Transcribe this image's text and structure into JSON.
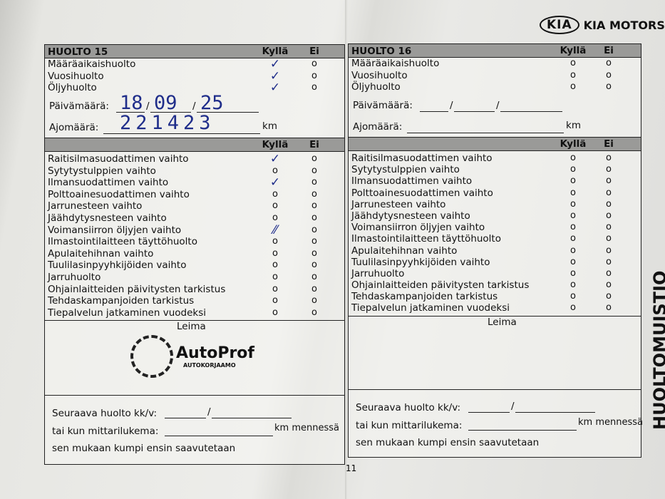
{
  "brand": {
    "logo_oval": "KIA",
    "logo_text": "KIA MOTORS"
  },
  "side_title": "HUOLTOMUISTIO",
  "page_number": "11",
  "pages": [
    {
      "title": "HUOLTO 15",
      "yes_label": "Kyllä",
      "no_label": "Ei",
      "top_items": [
        {
          "label": "Määräaikaishuolto",
          "yes": "check",
          "no": "circle"
        },
        {
          "label": "Vuosihuolto",
          "yes": "check",
          "no": "circle"
        },
        {
          "label": "Öljyhuolto",
          "yes": "check",
          "no": "circle"
        }
      ],
      "date_label": "Päivämäärä:",
      "date": {
        "day": "18",
        "month": "09",
        "year": "25"
      },
      "km_label": "Ajomäärä:",
      "km_value": "221423",
      "km_unit": "km",
      "items": [
        {
          "label": "Raitisilmasuodattimen vaihto",
          "yes": "check",
          "no": "circle"
        },
        {
          "label": "Sytytystulppien vaihto",
          "yes": "circle",
          "no": "circle"
        },
        {
          "label": "Ilmansuodattimen vaihto",
          "yes": "check",
          "no": "circle"
        },
        {
          "label": "Polttoainesuodattimen vaihto",
          "yes": "circle",
          "no": "circle"
        },
        {
          "label": "Jarrunesteen vaihto",
          "yes": "circle",
          "no": "circle"
        },
        {
          "label": "Jäähdytysnesteen vaihto",
          "yes": "circle",
          "no": "circle"
        },
        {
          "label": "Voimansiirron öljyjen vaihto",
          "yes": "scribble",
          "no": "circle"
        },
        {
          "label": "Ilmastointilaitteen täyttöhuolto",
          "yes": "circle",
          "no": "circle"
        },
        {
          "label": "Apulaitehihnan vaihto",
          "yes": "circle",
          "no": "circle"
        },
        {
          "label": "Tuulilasinpyyhkijöiden vaihto",
          "yes": "circle",
          "no": "circle"
        },
        {
          "label": "Jarruhuolto",
          "yes": "circle",
          "no": "circle"
        },
        {
          "label": "Ohjainlaitteiden päivitysten tarkistus",
          "yes": "circle",
          "no": "circle"
        },
        {
          "label": "Tehdaskampanjoiden tarkistus",
          "yes": "circle",
          "no": "circle"
        },
        {
          "label": "Tiepalvelun jatkaminen vuodeksi",
          "yes": "circle",
          "no": "circle"
        }
      ],
      "stamp_label": "Leima",
      "stamp": {
        "name": "AutoProf",
        "sub": "AUTOKORJAAMO"
      },
      "next_service_label": "Seuraava huolto kk/v:",
      "odometer_label": "tai kun mittarilukema:",
      "odometer_unit": "km mennessä",
      "whichever_label": "sen mukaan kumpi ensin saavutetaan"
    },
    {
      "title": "HUOLTO 16",
      "yes_label": "Kyllä",
      "no_label": "Ei",
      "top_items": [
        {
          "label": "Määräaikaishuolto",
          "yes": "circle",
          "no": "circle"
        },
        {
          "label": "Vuosihuolto",
          "yes": "circle",
          "no": "circle"
        },
        {
          "label": "Öljyhuolto",
          "yes": "circle",
          "no": "circle"
        }
      ],
      "date_label": "Päivämäärä:",
      "date": {
        "day": "",
        "month": "",
        "year": ""
      },
      "km_label": "Ajomäärä:",
      "km_value": "",
      "km_unit": "km",
      "items": [
        {
          "label": "Raitisilmasuodattimen vaihto",
          "yes": "circle",
          "no": "circle"
        },
        {
          "label": "Sytytystulppien vaihto",
          "yes": "circle",
          "no": "circle"
        },
        {
          "label": "Ilmansuodattimen vaihto",
          "yes": "circle",
          "no": "circle"
        },
        {
          "label": "Polttoainesuodattimen vaihto",
          "yes": "circle",
          "no": "circle"
        },
        {
          "label": "Jarrunesteen vaihto",
          "yes": "circle",
          "no": "circle"
        },
        {
          "label": "Jäähdytysnesteen vaihto",
          "yes": "circle",
          "no": "circle"
        },
        {
          "label": "Voimansiirron öljyjen vaihto",
          "yes": "circle",
          "no": "circle"
        },
        {
          "label": "Ilmastointilaitteen täyttöhuolto",
          "yes": "circle",
          "no": "circle"
        },
        {
          "label": "Apulaitehihnan vaihto",
          "yes": "circle",
          "no": "circle"
        },
        {
          "label": "Tuulilasinpyyhkijöiden vaihto",
          "yes": "circle",
          "no": "circle"
        },
        {
          "label": "Jarruhuolto",
          "yes": "circle",
          "no": "circle"
        },
        {
          "label": "Ohjainlaitteiden päivitysten tarkistus",
          "yes": "circle",
          "no": "circle"
        },
        {
          "label": "Tehdaskampanjoiden tarkistus",
          "yes": "circle",
          "no": "circle"
        },
        {
          "label": "Tiepalvelun jatkaminen vuodeksi",
          "yes": "circle",
          "no": "circle"
        }
      ],
      "stamp_label": "Leima",
      "next_service_label": "Seuraava huolto kk/v:",
      "odometer_label": "tai kun mittarilukema:",
      "odometer_unit": "km mennessä",
      "whichever_label": "sen mukaan kumpi ensin saavutetaan"
    }
  ]
}
